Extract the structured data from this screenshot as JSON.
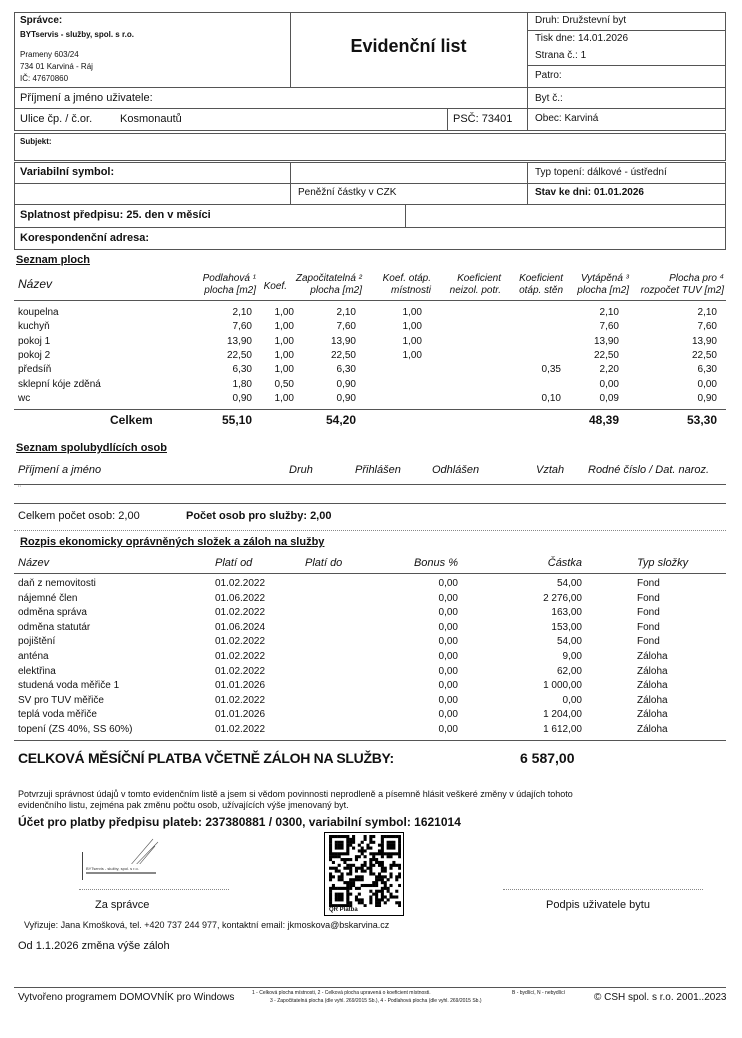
{
  "header": {
    "spravce_label": "Správce:",
    "spravce_name": "BYTservis - služby, spol. s r.o.",
    "spravce_street": "Prameny 603/24",
    "spravce_city": "734 01  Karviná - Ráj",
    "spravce_ic": "IČ:   47670860",
    "title": "Evidenční list",
    "druh": "Druh:  Družstevní byt",
    "tisk": "Tisk dne: 14.01.2026",
    "strana": "Strana č.:  1",
    "patro": "Patro:",
    "prijmeni": "Příjmení a jméno uživatele:",
    "byt": "Byt č.:",
    "ulice_label": "Ulice čp. / č.or.",
    "ulice": "Kosmonautů",
    "psc": "PSČ: 73401",
    "obec": "Obec:  Karviná",
    "subjekt": "Subjekt:",
    "vs": "Variabilní symbol:",
    "typ_topeni": "Typ topení:  dálkové - ústřední",
    "mena": "Peněžní částky v  CZK",
    "stav": "Stav ke dni: 01.01.2026",
    "splatnost": "Splatnost předpisu: 25. den v měsíci",
    "koresp": "Korespondenční adresa:"
  },
  "plochy": {
    "title": "Seznam ploch",
    "headers": [
      [
        "Název",
        ""
      ],
      [
        "Podlahová ¹",
        "plocha [m2]"
      ],
      [
        "Koef.",
        ""
      ],
      [
        "Započitatelná ²",
        "plocha [m2]"
      ],
      [
        "Koef. otáp.",
        "místnosti"
      ],
      [
        "Koeficient",
        "neizol. potr."
      ],
      [
        "Koeficient",
        "otáp. stěn"
      ],
      [
        "Vytápěná ³",
        "plocha [m2]"
      ],
      [
        "Plocha pro ⁴",
        "rozpočet TUV [m2]"
      ]
    ],
    "rows": [
      [
        "koupelna",
        "2,10",
        "1,00",
        "2,10",
        "1,00",
        "",
        "",
        "2,10",
        "2,10"
      ],
      [
        "kuchyň",
        "7,60",
        "1,00",
        "7,60",
        "1,00",
        "",
        "",
        "7,60",
        "7,60"
      ],
      [
        "pokoj 1",
        "13,90",
        "1,00",
        "13,90",
        "1,00",
        "",
        "",
        "13,90",
        "13,90"
      ],
      [
        "pokoj 2",
        "22,50",
        "1,00",
        "22,50",
        "1,00",
        "",
        "",
        "22,50",
        "22,50"
      ],
      [
        "předsíň",
        "6,30",
        "1,00",
        "6,30",
        "",
        "",
        "0,35",
        "2,20",
        "6,30"
      ],
      [
        "sklepní kóje zděná",
        "1,80",
        "0,50",
        "0,90",
        "",
        "",
        "",
        "0,00",
        "0,00"
      ],
      [
        "wc",
        "0,90",
        "1,00",
        "0,90",
        "",
        "",
        "0,10",
        "0,09",
        "0,90"
      ]
    ],
    "total": [
      "Celkem",
      "55,10",
      "",
      "54,20",
      "",
      "",
      "",
      "48,39",
      "53,30"
    ]
  },
  "osoby": {
    "title": "Seznam spolubydlících osob",
    "headers": [
      "Příjmení a jméno",
      "Druh",
      "Přihlášen",
      "Odhlášen",
      "Vztah",
      "Rodné číslo / Dat. naroz."
    ],
    "empty_mark": "¨",
    "celkem": "Celkem počet osob: 2,00",
    "pro_sluzby": "Počet osob pro služby: 2,00"
  },
  "rozpis": {
    "title": "Rozpis ekonomicky oprávněných složek a záloh na služby",
    "headers": [
      "Název",
      "Platí od",
      "Platí do",
      "Bonus %",
      "Částka",
      "Typ složky"
    ],
    "rows": [
      [
        "daň z nemovitosti",
        "01.02.2022",
        "",
        "0,00",
        "54,00",
        "Fond"
      ],
      [
        "nájemné člen",
        "01.06.2022",
        "",
        "0,00",
        "2 276,00",
        "Fond"
      ],
      [
        "odměna správa",
        "01.02.2022",
        "",
        "0,00",
        "163,00",
        "Fond"
      ],
      [
        "odměna statutár",
        "01.06.2024",
        "",
        "0,00",
        "153,00",
        "Fond"
      ],
      [
        "pojištění",
        "01.02.2022",
        "",
        "0,00",
        "54,00",
        "Fond"
      ],
      [
        "anténa",
        "01.02.2022",
        "",
        "0,00",
        "9,00",
        "Záloha"
      ],
      [
        "elektřina",
        "01.02.2022",
        "",
        "0,00",
        "62,00",
        "Záloha"
      ],
      [
        "studená voda měřiče 1",
        "01.01.2026",
        "",
        "0,00",
        "1 000,00",
        "Záloha"
      ],
      [
        "SV pro TUV měřiče",
        "01.02.2022",
        "",
        "0,00",
        "0,00",
        "Záloha"
      ],
      [
        "teplá voda měřiče",
        "01.01.2026",
        "",
        "0,00",
        "1 204,00",
        "Záloha"
      ],
      [
        "topení (ZS 40%, SS 60%)",
        "01.02.2022",
        "",
        "0,00",
        "1 612,00",
        "Záloha"
      ]
    ],
    "total_label": "CELKOVÁ MĚSÍČNÍ PLATBA VČETNĚ ZÁLOH NA SLUŽBY:",
    "total_value": "6 587,00"
  },
  "footer": {
    "confirm1": "Potvrzuji správnost údajů v tomto evidenčním listě a jsem si vědom povinnosti neprodleně a písemně hlásit veškeré změny v údajích tohoto",
    "confirm2": "evidenčního listu, zejména pak změnu počtu osob, užívajících výše jmenovaný byt.",
    "ucet": "Účet pro platby předpisu plateb: 237380881 / 0300, variabilní symbol: 1621014",
    "stamp": "BYTservis - služby, spol. s r.o.",
    "qr_label": "QR Platba",
    "za_spravce": "Za správce",
    "podpis": "Podpis uživatele bytu",
    "vyrizuje": "Vyřizuje: Jana Kmošková, tel. +420 737 244 977, kontaktní email: jkmoskova@bskarvina.cz",
    "zmena": "Od 1.1.2026 změna výše záloh",
    "program": "Vytvořeno programem DOMOVNÍK pro Windows",
    "note1": "1 - Celková plocha místnosti, 2 - Celková plocha upravená o koeficient místnosti.",
    "note_bn": "B - bydlící, N - nebydlící",
    "note2": "3 - Započitatelná plocha (dle vyhl. 269/2015 Sb.), 4 - Podlahová plocha (dle vyhl. 269/2015 Sb.)",
    "copyright": "© CSH spol. s r.o. 2001..2023"
  }
}
